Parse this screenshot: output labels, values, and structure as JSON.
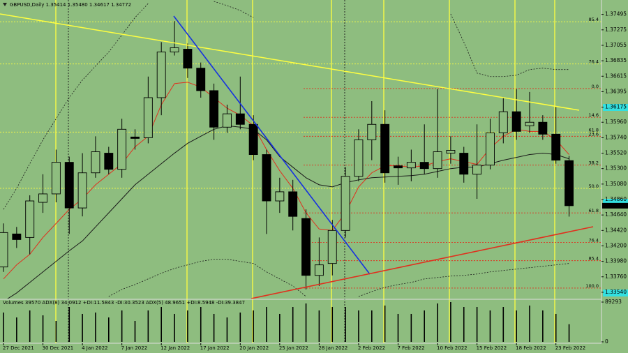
{
  "chart_data": [
    {
      "type": "candlestick",
      "title": "GBPUSD,Daily  1.35414 1.35480 1.34617 1.34772",
      "categories": [
        "27 Dec 2021",
        null,
        null,
        "30 Dec 2021",
        null,
        null,
        "4 Jan 2022",
        null,
        null,
        "7 Jan 2022",
        null,
        null,
        "12 Jan 2022",
        null,
        null,
        "17 Jan 2022",
        null,
        null,
        "20 Jan 2022",
        null,
        null,
        "25 Jan 2022",
        null,
        null,
        "28 Jan 2022",
        null,
        null,
        "2 Feb 2022",
        null,
        null,
        "7 Feb 2022",
        null,
        null,
        "10 Feb 2022",
        null,
        null,
        "15 Feb 2022",
        null,
        null,
        "18 Feb 2022",
        null,
        null,
        "23 Feb 2022",
        null
      ],
      "open": [
        1.339,
        1.3437,
        1.3432,
        1.3482,
        1.3494,
        1.3539,
        1.3474,
        1.3524,
        1.3552,
        1.3529,
        1.3575,
        1.3574,
        1.3631,
        1.3696,
        1.37,
        1.3673,
        1.3641,
        1.3589,
        1.3608,
        1.3593,
        1.355,
        1.3484,
        1.3497,
        1.3459,
        1.3378,
        1.3395,
        1.3442,
        1.3519,
        1.3571,
        1.3593,
        1.3534,
        1.3531,
        1.3539,
        1.353,
        1.3552,
        1.3552,
        1.3522,
        1.3535,
        1.3581,
        1.3611,
        1.3591,
        1.3596,
        1.3579,
        1.35414
      ],
      "high": [
        1.3452,
        1.3447,
        1.3492,
        1.3522,
        1.3557,
        1.3547,
        1.3552,
        1.3576,
        1.3561,
        1.3601,
        1.3586,
        1.3661,
        1.371,
        1.374,
        1.3708,
        1.3681,
        1.3651,
        1.3621,
        1.3661,
        1.3606,
        1.3557,
        1.3517,
        1.3514,
        1.3472,
        1.3432,
        1.3457,
        1.3532,
        1.3586,
        1.3626,
        1.3613,
        1.3547,
        1.3557,
        1.3593,
        1.3643,
        1.3576,
        1.3561,
        1.3593,
        1.3601,
        1.3631,
        1.3643,
        1.3639,
        1.3606,
        1.3618,
        1.3548
      ],
      "low": [
        1.3383,
        1.3417,
        1.3408,
        1.3467,
        1.3482,
        1.3437,
        1.3462,
        1.3517,
        1.3522,
        1.3517,
        1.3557,
        1.3566,
        1.3606,
        1.3691,
        1.3659,
        1.3631,
        1.3571,
        1.3581,
        1.3586,
        1.3542,
        1.3437,
        1.3467,
        1.3442,
        1.3358,
        1.3363,
        1.3378,
        1.3432,
        1.3512,
        1.3542,
        1.351,
        1.3507,
        1.3512,
        1.3522,
        1.3517,
        1.3537,
        1.351,
        1.3487,
        1.3529,
        1.3566,
        1.3571,
        1.3581,
        1.3571,
        1.3537,
        1.34617
      ],
      "close": [
        1.3439,
        1.3429,
        1.3484,
        1.3494,
        1.3539,
        1.3474,
        1.3524,
        1.3554,
        1.3529,
        1.3586,
        1.3573,
        1.3631,
        1.3696,
        1.3702,
        1.3673,
        1.3641,
        1.3589,
        1.3608,
        1.3593,
        1.355,
        1.3484,
        1.3497,
        1.3462,
        1.3378,
        1.3393,
        1.3442,
        1.3519,
        1.3571,
        1.3593,
        1.3524,
        1.3531,
        1.3539,
        1.353,
        1.3554,
        1.3556,
        1.3522,
        1.3535,
        1.3581,
        1.3611,
        1.3583,
        1.3596,
        1.3579,
        1.3542,
        1.34772
      ],
      "up_color": "#8ebd7f",
      "down_color": "#000000",
      "lines": [
        {
          "color": "#e0301e",
          "dash": false,
          "values": [
            1.3373,
            1.3393,
            1.3408,
            1.3432,
            1.3452,
            1.3472,
            1.3487,
            1.3507,
            1.3522,
            1.3537,
            1.3561,
            1.3576,
            1.3621,
            1.3651,
            1.3653,
            1.3646,
            1.3631,
            1.3616,
            1.3606,
            1.3591,
            1.3557,
            1.3527,
            1.3502,
            1.3467,
            1.3444,
            1.3442,
            1.3467,
            1.3504,
            1.3524,
            1.3534,
            1.3534,
            1.3532,
            1.3534,
            1.354,
            1.3544,
            1.354,
            1.3536,
            1.3559,
            1.3576,
            1.3586,
            1.3583,
            1.3583,
            1.3571,
            1.355
          ]
        },
        {
          "color": "#1a1a1a",
          "dash": false,
          "values": [
            1.3341,
            1.3353,
            1.3368,
            1.3383,
            1.3398,
            1.3413,
            1.3427,
            1.3447,
            1.3467,
            1.3487,
            1.3507,
            1.3522,
            1.3537,
            1.3552,
            1.3566,
            1.3576,
            1.3586,
            1.3591,
            1.3589,
            1.3586,
            1.3571,
            1.3547,
            1.3532,
            1.3517,
            1.3507,
            1.3504,
            1.351,
            1.3514,
            1.3517,
            1.3518,
            1.3519,
            1.352,
            1.3522,
            1.3526,
            1.353,
            1.3532,
            1.3532,
            1.3537,
            1.3542,
            1.3546,
            1.355,
            1.3552,
            1.355,
            1.3544
          ]
        },
        {
          "color": "#1a1a1a",
          "dash": true,
          "values": [
            1.3472,
            1.3502,
            1.3537,
            1.3571,
            1.3601,
            1.3631,
            1.3656,
            1.3676,
            1.3696,
            1.372,
            1.3745,
            1.3765,
            null,
            null,
            null,
            null,
            1.3768,
            1.3762,
            1.3755,
            1.3745,
            null,
            null,
            null,
            null,
            null,
            null,
            null,
            null,
            null,
            null,
            null,
            null,
            null,
            null,
            1.375,
            1.371,
            1.3666,
            1.3661,
            1.3661,
            1.3663,
            1.3671,
            1.3673,
            1.3671,
            1.3671
          ]
        },
        {
          "color": "#1a1a1a",
          "dash": true,
          "values": [
            null,
            null,
            null,
            null,
            null,
            null,
            null,
            null,
            1.3348,
            1.3358,
            1.3365,
            1.3373,
            1.3381,
            1.3388,
            1.3393,
            1.3398,
            1.3401,
            1.3401,
            1.3398,
            1.3395,
            1.3383,
            1.3373,
            1.3363,
            1.3348,
            null,
            null,
            null,
            1.3348,
            1.3355,
            1.3361,
            1.3365,
            1.3368,
            1.3373,
            1.3375,
            1.3377,
            1.3378,
            1.338,
            1.3383,
            1.3385,
            1.3387,
            1.3389,
            1.3391,
            1.3393,
            1.3395
          ]
        }
      ],
      "levels": [
        {
          "label": "85.4",
          "price": 1.3739,
          "color": "#ffff40"
        },
        {
          "label": "76.4",
          "price": 1.3679,
          "color": "#ffff40"
        },
        {
          "label": "61.8",
          "price": 1.3582,
          "color": "#ffff40"
        },
        {
          "label": "50.0",
          "price": 1.3502,
          "color": "#ffff40"
        },
        {
          "label": "0.0",
          "price": 1.3644,
          "color": "#e0301e"
        },
        {
          "label": "14.6",
          "price": 1.3603,
          "color": "#e0301e"
        },
        {
          "label": "23.6",
          "price": 1.3576,
          "color": "#e0301e"
        },
        {
          "label": "38.2",
          "price": 1.3535,
          "color": "#e0301e"
        },
        {
          "label": "61.8",
          "price": 1.3467,
          "color": "#e0301e"
        },
        {
          "label": "76.4",
          "price": 1.3425,
          "color": "#e0301e"
        },
        {
          "label": "85.4",
          "price": 1.3399,
          "color": "#e0301e"
        },
        {
          "label": "100.0",
          "price": 1.336,
          "color": "#e0301e"
        }
      ],
      "price_marks": [
        {
          "label": "1.34772",
          "value": 1.34772
        }
      ],
      "ylim": [
        1.3345,
        1.377
      ],
      "yticks": [
        1.37495,
        1.37275,
        1.37055,
        1.36835,
        1.36615,
        1.36395,
        1.36175,
        {
          "value": 1.3596,
          "label": "1.35960"
        },
        {
          "value": 1.3574,
          "label": "1.35740"
        },
        {
          "value": 1.3552,
          "label": "1.35520"
        },
        {
          "value": 1.353,
          "label": "1.35300"
        },
        {
          "value": 1.3508,
          "label": "1.35080"
        },
        {
          "value": 1.3486,
          "label": "1.34860"
        },
        {
          "value": 1.3464,
          "label": "1.34640"
        },
        {
          "value": 1.3442,
          "label": "1.34420"
        },
        {
          "value": 1.342,
          "label": "1.34200"
        },
        {
          "value": 1.3398,
          "label": "1.33980"
        },
        {
          "value": 1.3376,
          "label": "1.33760"
        },
        {
          "value": 1.3354,
          "label": "1.33540"
        }
      ]
    },
    {
      "type": "bar",
      "title": "Volumes 39570  ADX(8) 34.0912 +DI:11.5843 -DI:30.3523  ADX(5) 48.9651 +DI:8.5948 -DI:39.3847",
      "values": [
        65800,
        54800,
        70500,
        59500,
        47000,
        78300,
        62700,
        65800,
        54800,
        70500,
        47000,
        70500,
        78300,
        62700,
        70500,
        78300,
        62700,
        54800,
        65800,
        70500,
        78300,
        62700,
        78300,
        86200,
        70500,
        78300,
        78300,
        70500,
        70500,
        81500,
        62700,
        62700,
        70500,
        86200,
        89293,
        78300,
        78300,
        70500,
        78300,
        70500,
        81500,
        70500,
        62700,
        39570
      ],
      "color": "#000000",
      "ylim": [
        0,
        89293
      ],
      "yticks": [
        0,
        89293
      ]
    }
  ]
}
